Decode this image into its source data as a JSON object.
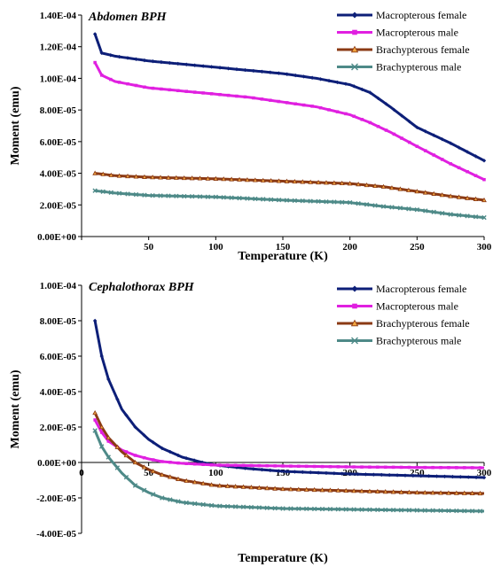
{
  "chart_data": [
    {
      "type": "line",
      "title": "Abdomen BPH",
      "xlabel": "Temperature (K)",
      "ylabel": "Moment (emu)",
      "xlim": [
        0,
        300
      ],
      "ylim": [
        0,
        0.00014
      ],
      "xticks": [
        "0",
        "50",
        "100",
        "150",
        "200",
        "250",
        "300"
      ],
      "yticks": [
        "0.00E+00",
        "2.00E-05",
        "4.00E-05",
        "6.00E-05",
        "8.00E-05",
        "1.00E-04",
        "1.20E-04",
        "1.40E-04"
      ],
      "grid": false,
      "legend_position": "top-right",
      "series": [
        {
          "name": "Macropterous female",
          "color": "#0d1f78",
          "marker": "diamond",
          "x": [
            10,
            15,
            25,
            50,
            75,
            100,
            125,
            150,
            175,
            200,
            215,
            230,
            250,
            275,
            300
          ],
          "y": [
            0.000128,
            0.000116,
            0.000114,
            0.000111,
            0.000109,
            0.000107,
            0.000105,
            0.000103,
            0.0001,
            9.6e-05,
            9.1e-05,
            8.2e-05,
            6.9e-05,
            5.9e-05,
            4.8e-05
          ]
        },
        {
          "name": "Macropterous male",
          "color": "#e020e0",
          "marker": "square",
          "x": [
            10,
            15,
            25,
            50,
            75,
            100,
            125,
            150,
            175,
            200,
            215,
            230,
            250,
            275,
            300
          ],
          "y": [
            0.00011,
            0.000102,
            9.8e-05,
            9.4e-05,
            9.2e-05,
            9e-05,
            8.8e-05,
            8.5e-05,
            8.2e-05,
            7.7e-05,
            7.2e-05,
            6.6e-05,
            5.7e-05,
            4.6e-05,
            3.6e-05
          ]
        },
        {
          "name": "Brachypterous female",
          "color": "#8b3a14",
          "marker": "triangle",
          "x": [
            10,
            25,
            50,
            100,
            150,
            200,
            225,
            250,
            275,
            300
          ],
          "y": [
            4e-05,
            3.85e-05,
            3.75e-05,
            3.65e-05,
            3.5e-05,
            3.35e-05,
            3.15e-05,
            2.85e-05,
            2.55e-05,
            2.3e-05
          ]
        },
        {
          "name": "Brachypterous male",
          "color": "#4e8a88",
          "marker": "x",
          "x": [
            10,
            25,
            50,
            100,
            150,
            200,
            225,
            250,
            275,
            300
          ],
          "y": [
            2.9e-05,
            2.75e-05,
            2.6e-05,
            2.5e-05,
            2.3e-05,
            2.15e-05,
            1.9e-05,
            1.7e-05,
            1.4e-05,
            1.2e-05
          ]
        }
      ]
    },
    {
      "type": "line",
      "title": "Cephalothorax BPH",
      "xlabel": "Temperature (K)",
      "ylabel": "Moment (emu)",
      "xlim": [
        0,
        300
      ],
      "ylim": [
        -4e-05,
        0.0001
      ],
      "xticks": [
        "0",
        "50",
        "100",
        "150",
        "200",
        "250",
        "300"
      ],
      "yticks": [
        "-4.00E-05",
        "-2.00E-05",
        "0.00E+00",
        "2.00E-05",
        "4.00E-05",
        "6.00E-05",
        "8.00E-05",
        "1.00E-04"
      ],
      "grid": false,
      "legend_position": "top-right",
      "series": [
        {
          "name": "Macropterous female",
          "color": "#0d1f78",
          "marker": "diamond",
          "x": [
            10,
            15,
            20,
            30,
            40,
            50,
            60,
            75,
            90,
            100,
            125,
            150,
            200,
            250,
            300
          ],
          "y": [
            8e-05,
            6e-05,
            4.7e-05,
            3e-05,
            2e-05,
            1.3e-05,
            8e-06,
            3e-06,
            0,
            -1.5e-06,
            -3.5e-06,
            -5e-06,
            -6.5e-06,
            -7.5e-06,
            -8.5e-06
          ]
        },
        {
          "name": "Macropterous male",
          "color": "#e020e0",
          "marker": "square",
          "x": [
            10,
            15,
            20,
            30,
            40,
            50,
            60,
            75,
            100,
            150,
            200,
            250,
            300
          ],
          "y": [
            2.4e-05,
            1.7e-05,
            1.2e-05,
            7e-06,
            4e-06,
            2e-06,
            5e-07,
            -5e-07,
            -1.5e-06,
            -2e-06,
            -2.5e-06,
            -2.8e-06,
            -3e-06
          ]
        },
        {
          "name": "Brachypterous female",
          "color": "#8b3a14",
          "marker": "triangle",
          "x": [
            10,
            15,
            20,
            30,
            40,
            50,
            60,
            75,
            100,
            150,
            200,
            250,
            300
          ],
          "y": [
            2.8e-05,
            2e-05,
            1.4e-05,
            6e-06,
            0,
            -4e-06,
            -7e-06,
            -1e-05,
            -1.3e-05,
            -1.5e-05,
            -1.6e-05,
            -1.7e-05,
            -1.75e-05
          ]
        },
        {
          "name": "Brachypterous male",
          "color": "#4e8a88",
          "marker": "x",
          "x": [
            10,
            15,
            20,
            30,
            40,
            50,
            60,
            75,
            100,
            150,
            200,
            250,
            300
          ],
          "y": [
            1.8e-05,
            9e-06,
            3e-06,
            -6e-06,
            -1.3e-05,
            -1.7e-05,
            -2e-05,
            -2.25e-05,
            -2.45e-05,
            -2.6e-05,
            -2.65e-05,
            -2.7e-05,
            -2.75e-05
          ]
        }
      ]
    }
  ]
}
